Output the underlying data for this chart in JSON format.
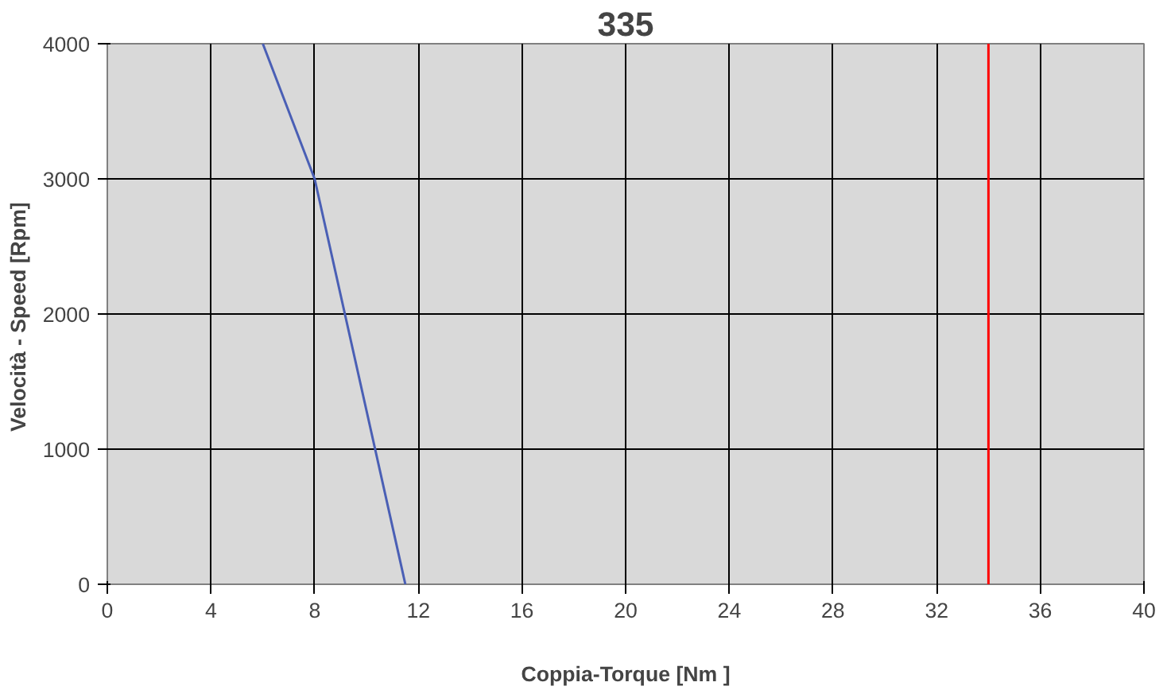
{
  "chart_data": {
    "type": "line",
    "title": "335",
    "xlabel": "Coppia-Torque [Nm ]",
    "ylabel": "Velocità - Speed  [Rpm]",
    "series": [
      {
        "color": "#4a5fb5",
        "x": [
          6,
          8,
          11.5
        ],
        "values": [
          4000,
          3000,
          0
        ]
      }
    ],
    "xlim": [
      0,
      40
    ],
    "xticks": [
      0,
      4,
      8,
      12,
      16,
      20,
      24,
      28,
      32,
      36,
      40
    ],
    "ylim": [
      0,
      4000
    ],
    "yticks": [
      0,
      1000,
      2000,
      3000,
      4000
    ],
    "grid": true,
    "ref_lines": [
      {
        "axis": "x",
        "value": 34,
        "color": "#ff0000"
      }
    ]
  }
}
